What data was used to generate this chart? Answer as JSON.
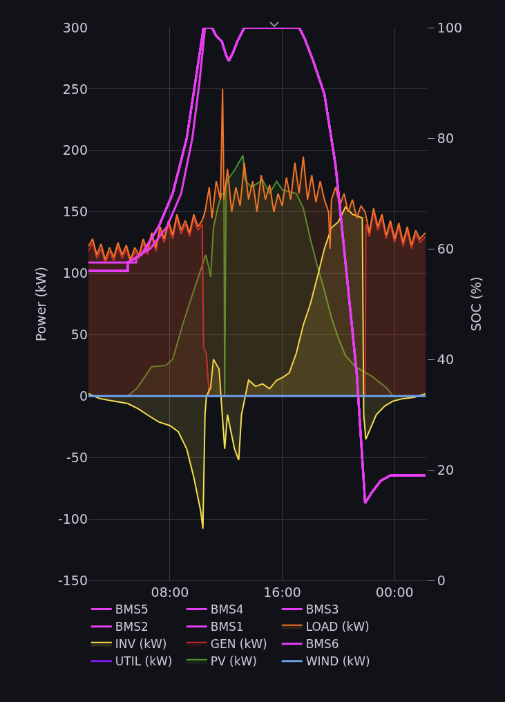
{
  "chart_data": {
    "type": "line",
    "xlabel": null,
    "ylabel": "Power (kW)",
    "y2label": "SOC (%)",
    "xlim": [
      2.2,
      26.3
    ],
    "xticks": [
      {
        "value": 8,
        "label": "08:00"
      },
      {
        "value": 16,
        "label": "16:00"
      },
      {
        "value": 24,
        "label": "00:00"
      }
    ],
    "ylim": [
      -150,
      300
    ],
    "yticks": [
      -150,
      -100,
      -50,
      0,
      50,
      100,
      150,
      200,
      250,
      300
    ],
    "y2lim": [
      0,
      100
    ],
    "y2ticks": [
      0,
      20,
      40,
      60,
      80,
      100
    ],
    "grid": true,
    "legend": "bottom",
    "marker": "none",
    "line_style": "solid",
    "series": [
      {
        "name": "BMS5",
        "color": "#e63ef2",
        "axis": "y2",
        "x": [
          2.2,
          5.0,
          5.0,
          6.0,
          7.2,
          8.2,
          9.2,
          9.8,
          10.4,
          11.0,
          11.3,
          11.7,
          12.0,
          12.2,
          12.5,
          12.8,
          13.3,
          17.2,
          17.6,
          18.2,
          19.0,
          19.8,
          20.2,
          20.6,
          21.3,
          21.9,
          22.4,
          23.0,
          23.7,
          26.2
        ],
        "values": [
          56,
          56,
          57.5,
          59,
          64,
          70,
          80,
          90,
          100,
          100,
          98.5,
          97.5,
          95,
          94,
          95.5,
          97.5,
          100,
          100,
          98,
          94,
          88,
          75,
          65,
          55,
          37.5,
          14,
          16,
          18,
          19,
          19
        ]
      },
      {
        "name": "BMS4",
        "color": "#e63ef2",
        "axis": "y2",
        "x": [
          2.2,
          5.0,
          5.0,
          6.0,
          7.2,
          8.2,
          9.2,
          9.8,
          10.4,
          11.0,
          11.3,
          11.7,
          12.0,
          12.2,
          12.5,
          12.8,
          13.3,
          17.2,
          17.6,
          18.2,
          19.0,
          19.8,
          20.2,
          20.6,
          21.3,
          21.9,
          22.4,
          23.0,
          23.7,
          26.2
        ],
        "values": [
          56,
          56,
          57.5,
          59,
          64,
          70,
          80,
          90,
          100,
          100,
          98.5,
          97.5,
          95,
          94,
          95.5,
          97.5,
          100,
          100,
          98,
          94,
          88,
          75,
          65,
          55,
          37.5,
          14,
          16,
          18,
          19,
          19
        ]
      },
      {
        "name": "BMS3",
        "color": "#e63ef2",
        "axis": "y2",
        "x": [
          2.2,
          5.0,
          5.0,
          6.0,
          7.2,
          8.2,
          9.2,
          9.8,
          10.4,
          11.0,
          11.3,
          11.7,
          12.0,
          12.2,
          12.5,
          12.8,
          13.3,
          17.2,
          17.6,
          18.2,
          19.0,
          19.8,
          20.2,
          20.6,
          21.3,
          21.9,
          22.4,
          23.0,
          23.7,
          26.2
        ],
        "values": [
          56,
          56,
          57.5,
          59,
          64,
          70,
          80,
          90,
          100,
          100,
          98.5,
          97.5,
          95,
          94,
          95.5,
          97.5,
          100,
          100,
          98,
          94,
          88,
          75,
          65,
          55,
          37.5,
          14,
          16,
          18,
          19,
          19
        ]
      },
      {
        "name": "BMS2",
        "color": "#e63ef2",
        "axis": "y2",
        "x": [
          2.2,
          5.0,
          5.0,
          6.0,
          7.2,
          8.2,
          9.2,
          9.8,
          10.4,
          11.0,
          11.3,
          11.7,
          12.0,
          12.2,
          12.5,
          12.8,
          13.3,
          17.2,
          17.6,
          18.2,
          19.0,
          19.8,
          20.2,
          20.6,
          21.3,
          21.9,
          22.4,
          23.0,
          23.7,
          26.2
        ],
        "values": [
          56,
          56,
          57.5,
          59,
          64,
          70,
          80,
          90,
          100,
          100,
          98.5,
          97.5,
          95,
          94,
          95.5,
          97.5,
          100,
          100,
          98,
          94,
          88,
          75,
          65,
          55,
          37.5,
          14,
          16,
          18,
          19,
          19
        ]
      },
      {
        "name": "BMS1",
        "color": "#e63ef2",
        "axis": "y2",
        "x": [
          2.2,
          5.0,
          5.0,
          6.0,
          7.2,
          8.2,
          9.2,
          9.8,
          10.4,
          11.0,
          11.3,
          11.7,
          12.0,
          12.2,
          12.5,
          12.8,
          13.3,
          17.2,
          17.6,
          18.2,
          19.0,
          19.8,
          20.2,
          20.6,
          21.3,
          21.9,
          22.4,
          23.0,
          23.7,
          26.2
        ],
        "values": [
          56,
          56,
          57.5,
          59,
          64,
          70,
          80,
          90,
          100,
          100,
          98.5,
          97.5,
          95,
          94,
          95.5,
          97.5,
          100,
          100,
          98,
          94,
          88,
          75,
          65,
          55,
          37.5,
          14,
          16,
          18,
          19,
          19
        ]
      },
      {
        "name": "LOAD (kW)",
        "color": "#f07528",
        "type": "area",
        "x": [
          2.2,
          2.5,
          2.8,
          3.1,
          3.4,
          3.7,
          4.0,
          4.3,
          4.6,
          4.9,
          5.2,
          5.5,
          5.8,
          6.1,
          6.4,
          6.7,
          7.0,
          7.3,
          7.6,
          7.9,
          8.2,
          8.5,
          8.8,
          9.1,
          9.4,
          9.7,
          10.0,
          10.3,
          10.5,
          10.8,
          11.0,
          11.3,
          11.6,
          11.75,
          11.85,
          12.1,
          12.4,
          12.7,
          13.0,
          13.3,
          13.6,
          13.9,
          14.2,
          14.5,
          14.8,
          15.1,
          15.4,
          15.7,
          16.0,
          16.3,
          16.6,
          16.9,
          17.2,
          17.5,
          17.8,
          18.1,
          18.4,
          18.7,
          19.0,
          19.3,
          19.4,
          19.5,
          19.8,
          20.1,
          20.4,
          20.7,
          21.0,
          21.3,
          21.6,
          21.9,
          22.2,
          22.5,
          22.8,
          23.1,
          23.4,
          23.7,
          24.0,
          24.3,
          24.6,
          24.9,
          25.2,
          25.5,
          25.8,
          26.2
        ],
        "values": [
          122,
          128,
          115,
          124,
          111,
          121,
          113,
          125,
          115,
          123,
          111,
          121,
          115,
          128,
          118,
          133,
          121,
          138,
          128,
          143,
          131,
          148,
          135,
          143,
          133,
          148,
          138,
          143,
          150,
          170,
          145,
          175,
          160,
          250,
          160,
          185,
          150,
          170,
          155,
          190,
          160,
          175,
          150,
          180,
          160,
          172,
          150,
          165,
          155,
          178,
          160,
          190,
          165,
          195,
          160,
          180,
          158,
          175,
          160,
          150,
          120,
          160,
          170,
          155,
          165,
          150,
          160,
          145,
          155,
          150,
          133,
          153,
          138,
          148,
          131,
          143,
          128,
          141,
          125,
          138,
          123,
          135,
          128,
          133
        ]
      },
      {
        "name": "INV (kW)",
        "color": "#f5e050",
        "type": "area",
        "x": [
          2.2,
          3.0,
          4.0,
          5.0,
          5.7,
          6.5,
          7.2,
          8.0,
          8.6,
          9.2,
          9.7,
          10.2,
          10.35,
          10.5,
          10.6,
          10.9,
          11.1,
          11.5,
          11.9,
          12.1,
          12.6,
          12.9,
          13.1,
          13.6,
          14.1,
          14.6,
          15.1,
          15.6,
          16.0,
          16.5,
          17.0,
          17.5,
          18.0,
          18.5,
          19.0,
          19.5,
          20.0,
          20.5,
          21.0,
          21.7,
          21.8,
          21.95,
          22.7,
          23.3,
          23.9,
          24.6,
          25.4,
          26.2
        ],
        "values": [
          2,
          -2,
          -4,
          -6,
          -10,
          -16,
          -21,
          -24,
          -29,
          -43,
          -66,
          -94,
          -108,
          -15,
          0,
          7,
          30,
          22,
          -43,
          -15,
          -43,
          -52,
          -15,
          13,
          8,
          10,
          6,
          13,
          15,
          19,
          35,
          58,
          75,
          97,
          120,
          137,
          142,
          154,
          148,
          145,
          -15,
          -35,
          -15,
          -8,
          -4,
          -2,
          -1,
          2
        ]
      },
      {
        "name": "GEN (kW)",
        "color": "#c4272d",
        "type": "area",
        "x": [
          2.2,
          2.5,
          2.8,
          3.1,
          3.4,
          3.7,
          4.0,
          4.3,
          4.6,
          4.9,
          5.2,
          5.5,
          5.8,
          6.1,
          6.4,
          6.7,
          7.0,
          7.3,
          7.6,
          7.9,
          8.2,
          8.5,
          8.8,
          9.1,
          9.4,
          9.7,
          10.0,
          10.3,
          10.4,
          10.6,
          10.8,
          21.9,
          21.95,
          22.2,
          22.5,
          22.8,
          23.1,
          23.4,
          23.7,
          24.0,
          24.3,
          24.6,
          24.9,
          25.2,
          25.5,
          25.8,
          26.2
        ],
        "values": [
          118,
          125,
          112,
          120,
          108,
          118,
          110,
          122,
          112,
          120,
          108,
          118,
          112,
          125,
          115,
          130,
          118,
          135,
          125,
          140,
          128,
          145,
          132,
          140,
          130,
          145,
          135,
          140,
          40,
          34,
          0,
          0,
          140,
          130,
          150,
          135,
          145,
          128,
          140,
          125,
          138,
          122,
          135,
          120,
          132,
          125,
          130
        ]
      },
      {
        "name": "BMS6",
        "color": "#e63ef2",
        "axis": "y2",
        "x": [
          2.2,
          5.6,
          5.6,
          6.6,
          7.8,
          8.8,
          9.6,
          10.1,
          10.5,
          11.0,
          11.3,
          11.7,
          12.0,
          12.2,
          12.5,
          12.8,
          13.3,
          17.2,
          17.6,
          18.2,
          19.0,
          19.8,
          20.2,
          20.6,
          21.3,
          21.9,
          22.4,
          23.0,
          23.7,
          26.2
        ],
        "values": [
          57.5,
          57.5,
          58.5,
          60,
          64,
          70,
          80,
          90,
          100,
          100,
          98.5,
          97.5,
          95,
          94,
          95.5,
          97.5,
          100,
          100,
          98,
          94,
          88,
          75,
          65,
          55,
          37.5,
          14,
          16,
          18,
          19,
          19
        ]
      },
      {
        "name": "UTIL (kW)",
        "color": "#7a1cf5"
      },
      {
        "name": "PV (kW)",
        "color": "#4e8f2e",
        "type": "area",
        "x": [
          2.2,
          5.0,
          5.7,
          6.7,
          7.7,
          8.2,
          8.9,
          9.7,
          10.55,
          10.75,
          10.9,
          11.1,
          11.4,
          11.7,
          11.85,
          11.9,
          12.0,
          12.1,
          12.6,
          13.2,
          13.35,
          13.8,
          14.6,
          15.1,
          15.6,
          16.0,
          17.0,
          17.5,
          18.0,
          18.5,
          19.0,
          19.5,
          20.0,
          20.5,
          21.2,
          22.4,
          23.4,
          23.9,
          26.2
        ],
        "values": [
          0,
          0,
          7,
          24,
          25,
          30,
          58,
          86,
          115,
          106,
          97,
          137,
          153,
          165,
          165,
          0,
          170,
          176,
          184,
          196,
          176,
          170,
          176,
          165,
          175,
          168,
          165,
          153,
          128,
          106,
          86,
          64,
          47,
          33,
          24,
          16,
          7,
          0,
          0
        ]
      },
      {
        "name": "WIND (kW)",
        "color": "#6d9ee8",
        "x": [
          2.2,
          26.2
        ],
        "values": [
          0,
          0
        ]
      }
    ]
  }
}
